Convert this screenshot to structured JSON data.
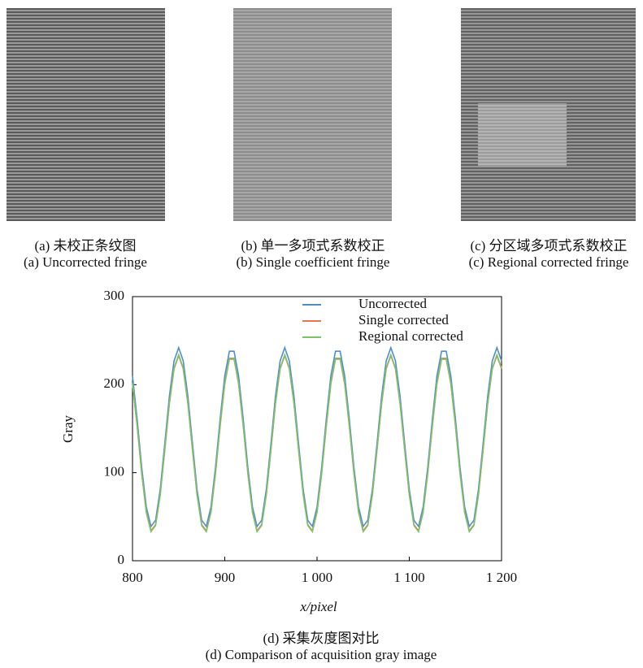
{
  "panels": [
    {
      "caption_zh": "(a) 未校正条纹图",
      "caption_en": "(a) Uncorrected fringe"
    },
    {
      "caption_zh": "(b) 单一多项式系数校正",
      "caption_en": "(b) Single coefficient fringe"
    },
    {
      "caption_zh": "(c) 分区域多项式系数校正",
      "caption_en": "(c) Regional corrected fringe"
    }
  ],
  "figure_caption": {
    "zh": "(d) 采集灰度图对比",
    "en": "(d) Comparison of acquisition gray image"
  },
  "chart_data": {
    "type": "line",
    "xlabel": "x/pixel",
    "ylabel": "Gray",
    "xlim": [
      800,
      1200
    ],
    "ylim": [
      0,
      300
    ],
    "xticks": [
      800,
      900,
      {
        "value": 1000,
        "label": "1 000"
      },
      {
        "value": 1100,
        "label": "1 100"
      },
      {
        "value": 1200,
        "label": "1 200"
      }
    ],
    "yticks": [
      0,
      100,
      200,
      300
    ],
    "legend": "upper right",
    "x": [
      800,
      805,
      810,
      815,
      820,
      825,
      830,
      835,
      840,
      845,
      850,
      855,
      860,
      865,
      870,
      875,
      880,
      885,
      890,
      895,
      900,
      905,
      910,
      915,
      920,
      925,
      930,
      935,
      940,
      945,
      950,
      955,
      960,
      965,
      970,
      975,
      980,
      985,
      990,
      995,
      1000,
      1005,
      1010,
      1015,
      1020,
      1025,
      1030,
      1035,
      1040,
      1045,
      1050,
      1055,
      1060,
      1065,
      1070,
      1075,
      1080,
      1085,
      1090,
      1095,
      1100,
      1105,
      1110,
      1115,
      1120,
      1125,
      1130,
      1135,
      1140,
      1145,
      1150,
      1155,
      1160,
      1165,
      1170,
      1175,
      1180,
      1185,
      1190,
      1195,
      1200
    ],
    "series": [
      {
        "name": "Uncorrected",
        "color": "#4f8fc8",
        "values": [
          210,
          161,
          106,
          61,
          39,
          46,
          81,
          133,
          187,
          227,
          242,
          227,
          187,
          133,
          81,
          46,
          39,
          61,
          106,
          161,
          210,
          238,
          238,
          210,
          161,
          106,
          61,
          39,
          46,
          81,
          133,
          187,
          227,
          242,
          227,
          187,
          133,
          81,
          46,
          39,
          61,
          106,
          161,
          210,
          238,
          238,
          210,
          161,
          106,
          61,
          39,
          46,
          81,
          133,
          187,
          227,
          242,
          227,
          187,
          133,
          81,
          46,
          39,
          61,
          106,
          161,
          210,
          238,
          238,
          210,
          161,
          106,
          61,
          39,
          46,
          81,
          133,
          187,
          227,
          242,
          227
        ]
      },
      {
        "name": "Single corrected",
        "color": "#e8735a",
        "values": [
          201,
          153,
          100,
          55,
          34,
          41,
          75,
          126,
          179,
          218,
          233,
          218,
          179,
          126,
          75,
          41,
          34,
          55,
          100,
          153,
          201,
          229,
          229,
          201,
          153,
          100,
          55,
          34,
          41,
          75,
          126,
          179,
          218,
          233,
          218,
          179,
          126,
          75,
          41,
          34,
          55,
          100,
          153,
          201,
          229,
          229,
          201,
          153,
          100,
          55,
          34,
          41,
          75,
          126,
          179,
          218,
          233,
          218,
          179,
          126,
          75,
          41,
          34,
          55,
          100,
          153,
          201,
          229,
          229,
          201,
          153,
          100,
          55,
          34,
          41,
          75,
          126,
          179,
          218,
          233,
          218
        ]
      },
      {
        "name": "Regional corrected",
        "color": "#7cc36a",
        "values": [
          202,
          154,
          99,
          55,
          33,
          40,
          75,
          126,
          179,
          219,
          234,
          219,
          179,
          126,
          75,
          40,
          33,
          55,
          99,
          154,
          202,
          230,
          230,
          202,
          154,
          99,
          55,
          33,
          40,
          75,
          126,
          179,
          219,
          234,
          219,
          179,
          126,
          75,
          40,
          33,
          55,
          99,
          154,
          202,
          230,
          230,
          202,
          154,
          99,
          55,
          33,
          40,
          75,
          126,
          179,
          219,
          234,
          219,
          179,
          126,
          75,
          40,
          33,
          55,
          99,
          154,
          202,
          230,
          230,
          202,
          154,
          99,
          55,
          33,
          40,
          75,
          126,
          179,
          219,
          234,
          219
        ]
      }
    ]
  }
}
